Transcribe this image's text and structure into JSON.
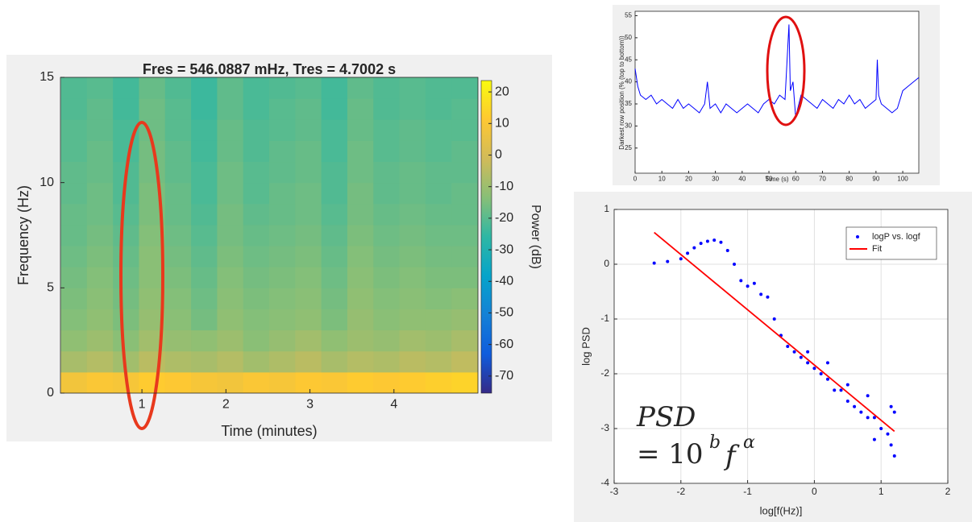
{
  "chart_data": [
    {
      "type": "heatmap",
      "title": "Fres = 546.0887 mHz, Tres = 4.7002 s",
      "x_label": "Time (minutes)",
      "y_label": "Frequency (Hz)",
      "xlim": [
        0.03,
        5.0
      ],
      "xticks": [
        1,
        2,
        3,
        4
      ],
      "ylim": [
        0,
        15
      ],
      "yticks": [
        0,
        5,
        10,
        15
      ],
      "x": [
        0.19,
        0.5,
        0.81,
        1.12,
        1.43,
        1.74,
        2.05,
        2.36,
        2.67,
        2.98,
        3.29,
        3.6,
        3.91,
        4.22,
        4.53,
        4.84
      ],
      "y": [
        0.5,
        1.5,
        2.5,
        3.5,
        4.5,
        5.5,
        6.5,
        7.5,
        8.5,
        9.5,
        10.5,
        11.5,
        12.5,
        13.5,
        14.5
      ],
      "z": [
        [
          8,
          10,
          9,
          12,
          11,
          9,
          8,
          10,
          9,
          11,
          10,
          12,
          11,
          12,
          13,
          14
        ],
        [
          -8,
          -6,
          -9,
          -5,
          -7,
          -8,
          -6,
          -9,
          -7,
          -5,
          -8,
          -6,
          -7,
          -5,
          -6,
          -4
        ],
        [
          -12,
          -10,
          -13,
          -9,
          -11,
          -12,
          -10,
          -13,
          -11,
          -9,
          -12,
          -10,
          -11,
          -9,
          -10,
          -8
        ],
        [
          -14,
          -12,
          -15,
          -11,
          -13,
          -16,
          -12,
          -14,
          -13,
          -12,
          -15,
          -11,
          -13,
          -12,
          -12,
          -11
        ],
        [
          -15,
          -13,
          -16,
          -12,
          -14,
          -17,
          -13,
          -15,
          -14,
          -13,
          -16,
          -12,
          -14,
          -13,
          -14,
          -13
        ],
        [
          -16,
          -14,
          -17,
          -13,
          -15,
          -18,
          -14,
          -16,
          -15,
          -14,
          -17,
          -13,
          -15,
          -14,
          -15,
          -15
        ],
        [
          -17,
          -15,
          -18,
          -13,
          -16,
          -19,
          -15,
          -17,
          -16,
          -15,
          -18,
          -14,
          -16,
          -15,
          -16,
          -16
        ],
        [
          -18,
          -16,
          -19,
          -14,
          -17,
          -20,
          -16,
          -18,
          -17,
          -16,
          -19,
          -15,
          -17,
          -16,
          -17,
          -17
        ],
        [
          -18,
          -17,
          -20,
          -15,
          -18,
          -21,
          -16,
          -19,
          -18,
          -17,
          -20,
          -16,
          -18,
          -17,
          -18,
          -18
        ],
        [
          -19,
          -17,
          -21,
          -15,
          -18,
          -22,
          -17,
          -20,
          -18,
          -17,
          -21,
          -16,
          -19,
          -18,
          -19,
          -18
        ],
        [
          -19,
          -18,
          -21,
          -16,
          -19,
          -22,
          -17,
          -20,
          -19,
          -18,
          -21,
          -17,
          -19,
          -18,
          -19,
          -19
        ],
        [
          -20,
          -18,
          -22,
          -16,
          -19,
          -23,
          -18,
          -21,
          -19,
          -18,
          -22,
          -17,
          -20,
          -19,
          -20,
          -19
        ],
        [
          -20,
          -19,
          -22,
          -17,
          -20,
          -23,
          -18,
          -21,
          -20,
          -19,
          -22,
          -18,
          -20,
          -19,
          -20,
          -20
        ],
        [
          -21,
          -19,
          -23,
          -17,
          -20,
          -24,
          -19,
          -22,
          -20,
          -19,
          -23,
          -18,
          -21,
          -20,
          -21,
          -20
        ],
        [
          -21,
          -20,
          -23,
          -18,
          -21,
          -24,
          -19,
          -22,
          -21,
          -20,
          -23,
          -19,
          -21,
          -20,
          -21,
          -21
        ]
      ],
      "colorbar": {
        "label": "Power (dB)",
        "clim": [
          -75.4,
          23.6
        ],
        "ticks": [
          20,
          10,
          0,
          -10,
          -20,
          -30,
          -40,
          -50,
          -60,
          -70
        ],
        "colormap": [
          "#352a87",
          "#0f5cdd",
          "#1481d6",
          "#06a4ca",
          "#2eb7a4",
          "#87bf77",
          "#d1bb59",
          "#fec832",
          "#f9fb0e"
        ]
      }
    },
    {
      "type": "line",
      "x_label": "Time (s)",
      "y_label": "Darkest row position (% (top to bottom))",
      "xlim": [
        0,
        106
      ],
      "xticks": [
        0,
        10,
        20,
        30,
        40,
        50,
        60,
        70,
        80,
        90,
        100
      ],
      "ylim": [
        19.3,
        56
      ],
      "yticks": [
        25,
        30,
        35,
        40,
        45,
        50,
        55
      ],
      "color": "#0000ff",
      "x": [
        0,
        1,
        2,
        4,
        6,
        8,
        10,
        12,
        14,
        16,
        18,
        20,
        22,
        24,
        26,
        27,
        28,
        30,
        32,
        34,
        36,
        38,
        40,
        42,
        44,
        46,
        48,
        50,
        52,
        54,
        56,
        57.5,
        58,
        59,
        60,
        62,
        64,
        66,
        68,
        70,
        72,
        74,
        76,
        78,
        80,
        82,
        84,
        86,
        88,
        90,
        90.5,
        91,
        92,
        94,
        96,
        98,
        100,
        102,
        104,
        106
      ],
      "values": [
        43,
        39,
        37,
        36,
        37,
        35,
        36,
        35,
        34,
        36,
        34,
        35,
        34,
        33,
        35,
        40,
        34,
        35,
        33,
        35,
        34,
        33,
        34,
        35,
        34,
        33,
        35,
        36,
        35,
        37,
        36,
        53,
        38,
        40,
        32,
        37,
        36,
        35,
        34,
        36,
        35,
        34,
        36,
        35,
        37,
        35,
        36,
        34,
        35,
        36,
        45,
        37,
        35,
        34,
        33,
        34,
        38,
        39,
        40,
        41
      ]
    },
    {
      "type": "scatter",
      "x_label": "log[f(Hz)]",
      "y_label": "log PSD",
      "xlim": [
        -3,
        2
      ],
      "xticks": [
        -3,
        -2,
        -1,
        0,
        1,
        2
      ],
      "ylim": [
        -4,
        1
      ],
      "yticks": [
        -4,
        -3,
        -2,
        -1,
        0,
        1
      ],
      "grid": true,
      "legend": "upper right",
      "series": [
        {
          "name": "logP vs. logf",
          "color": "#0000ff",
          "mode": "markers",
          "x": [
            -2.4,
            -2.2,
            -2.0,
            -1.9,
            -1.8,
            -1.7,
            -1.6,
            -1.5,
            -1.4,
            -1.3,
            -1.2,
            -1.1,
            -1.0,
            -0.9,
            -0.8,
            -0.7,
            -0.6,
            -0.5,
            -0.4,
            -0.3,
            -0.2,
            -0.1,
            -0.1,
            0,
            0.1,
            0.2,
            0.2,
            0.3,
            0.4,
            0.5,
            0.5,
            0.6,
            0.7,
            0.8,
            0.8,
            0.9,
            0.9,
            1.0,
            1.1,
            1.15,
            1.15,
            1.2,
            1.2
          ],
          "values": [
            0.02,
            0.05,
            0.1,
            0.2,
            0.3,
            0.38,
            0.42,
            0.44,
            0.4,
            0.25,
            0.0,
            -0.3,
            -0.4,
            -0.35,
            -0.55,
            -0.6,
            -1.0,
            -1.3,
            -1.5,
            -1.6,
            -1.7,
            -1.8,
            -1.6,
            -1.9,
            -2.0,
            -2.1,
            -1.8,
            -2.3,
            -2.3,
            -2.5,
            -2.2,
            -2.6,
            -2.7,
            -2.8,
            -2.4,
            -2.8,
            -3.2,
            -3.0,
            -3.1,
            -3.3,
            -2.6,
            -3.5,
            -2.7
          ]
        },
        {
          "name": "Fit",
          "color": "#ff0000",
          "mode": "line",
          "x": [
            -2.4,
            1.2
          ],
          "values": [
            0.58,
            -3.05
          ]
        }
      ],
      "annotations": [
        "PSD",
        "= 10",
        "b",
        "f",
        "α"
      ]
    }
  ]
}
